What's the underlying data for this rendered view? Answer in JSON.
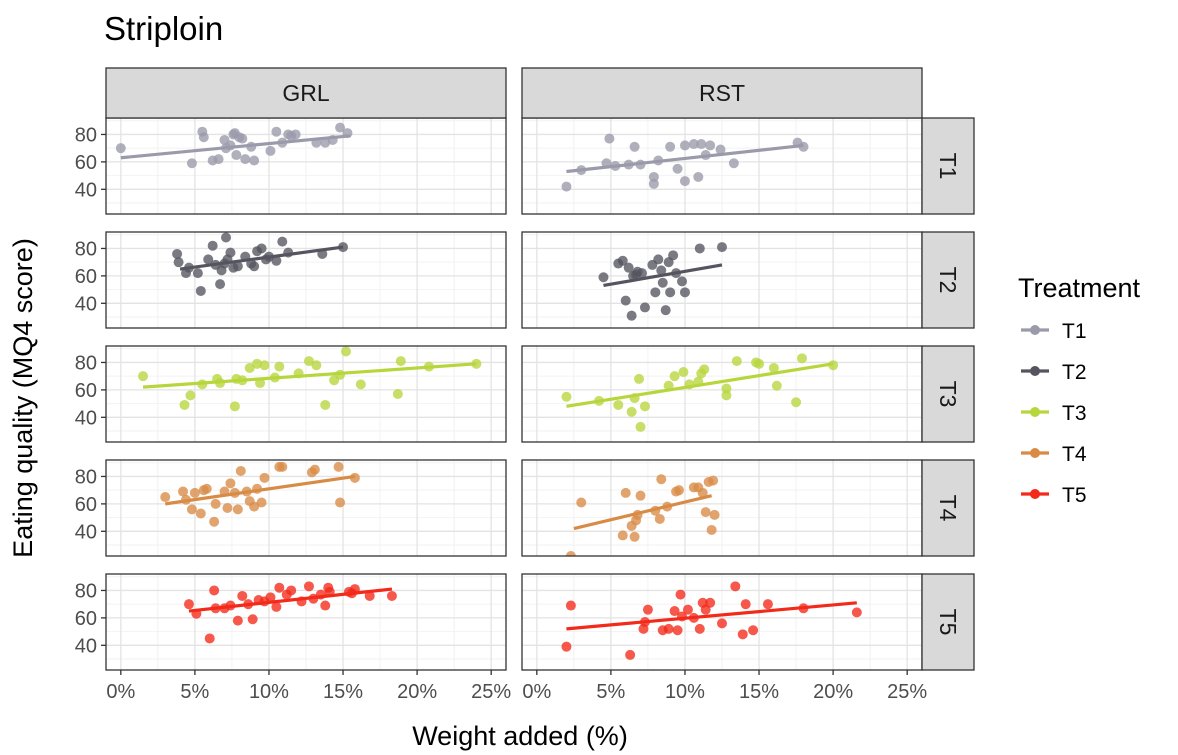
{
  "chart_data": {
    "type": "scatter",
    "title": "Striploin",
    "xlabel": "Weight added (%)",
    "ylabel": "Eating quality (MQ4 score)",
    "xlim": [
      -1,
      26
    ],
    "ylim": [
      22,
      92
    ],
    "x_ticks": [
      0,
      5,
      10,
      15,
      20,
      25
    ],
    "x_tick_labels": [
      "0%",
      "5%",
      "10%",
      "15%",
      "20%",
      "25%"
    ],
    "y_ticks": [
      40,
      60,
      80
    ],
    "y_tick_labels": [
      "40",
      "60",
      "80"
    ],
    "grid": true,
    "legend": {
      "title": "Treatment",
      "position": "right",
      "entries": [
        {
          "label": "T1",
          "color": "#9a9aaa"
        },
        {
          "label": "T2",
          "color": "#55545f"
        },
        {
          "label": "T3",
          "color": "#b7d63c"
        },
        {
          "label": "T4",
          "color": "#d88b45"
        },
        {
          "label": "T5",
          "color": "#f3291a"
        }
      ]
    },
    "columns": [
      "GRL",
      "RST"
    ],
    "rows": [
      "T1",
      "T2",
      "T3",
      "T4",
      "T5"
    ],
    "panels": [
      {
        "col": "GRL",
        "row": "T1",
        "color": "#9a9aaa",
        "fit": [
          [
            0,
            63
          ],
          [
            15.5,
            79
          ]
        ],
        "points": [
          [
            0,
            70
          ],
          [
            4.8,
            59
          ],
          [
            5.5,
            82
          ],
          [
            5.6,
            78
          ],
          [
            6.2,
            61
          ],
          [
            6.6,
            62
          ],
          [
            7,
            76
          ],
          [
            7.1,
            70
          ],
          [
            7.4,
            72
          ],
          [
            7.6,
            80
          ],
          [
            7.7,
            81
          ],
          [
            7.8,
            65
          ],
          [
            8.0,
            78
          ],
          [
            8.2,
            77
          ],
          [
            8.4,
            62
          ],
          [
            8.8,
            71
          ],
          [
            9.0,
            61
          ],
          [
            10.1,
            68
          ],
          [
            10.5,
            82
          ],
          [
            10.9,
            74
          ],
          [
            11.3,
            80
          ],
          [
            11.5,
            79
          ],
          [
            11.8,
            80
          ],
          [
            13.2,
            74
          ],
          [
            13.8,
            74
          ],
          [
            14.3,
            76
          ],
          [
            14.8,
            85
          ],
          [
            15.3,
            81
          ]
        ]
      },
      {
        "col": "RST",
        "row": "T1",
        "color": "#9a9aaa",
        "fit": [
          [
            2,
            53
          ],
          [
            18,
            72
          ]
        ],
        "points": [
          [
            2,
            42
          ],
          [
            3,
            54
          ],
          [
            4.7,
            59
          ],
          [
            4.9,
            77
          ],
          [
            5.3,
            57
          ],
          [
            6.2,
            58
          ],
          [
            6.6,
            71
          ],
          [
            7,
            58
          ],
          [
            7.9,
            44
          ],
          [
            7.9,
            49
          ],
          [
            8.2,
            61
          ],
          [
            9.0,
            71
          ],
          [
            9.5,
            55
          ],
          [
            10,
            72
          ],
          [
            10,
            46
          ],
          [
            10.6,
            73
          ],
          [
            10.9,
            49
          ],
          [
            11.1,
            73
          ],
          [
            11.4,
            65
          ],
          [
            11.7,
            72
          ],
          [
            12.4,
            69
          ],
          [
            13.3,
            59
          ],
          [
            17.6,
            74
          ],
          [
            18,
            71
          ]
        ]
      },
      {
        "col": "GRL",
        "row": "T2",
        "color": "#55545f",
        "fit": [
          [
            4,
            65
          ],
          [
            15,
            81
          ]
        ],
        "points": [
          [
            3.8,
            76
          ],
          [
            3.9,
            70
          ],
          [
            4.4,
            62
          ],
          [
            4.6,
            66
          ],
          [
            5.2,
            62
          ],
          [
            5.4,
            49
          ],
          [
            5.9,
            72
          ],
          [
            6.2,
            82
          ],
          [
            6.4,
            68
          ],
          [
            6.7,
            54
          ],
          [
            6.8,
            64
          ],
          [
            7,
            69
          ],
          [
            7.1,
            88
          ],
          [
            7.2,
            72
          ],
          [
            7.4,
            77
          ],
          [
            7.6,
            66
          ],
          [
            7.9,
            67
          ],
          [
            8.4,
            74
          ],
          [
            8.8,
            69
          ],
          [
            9.0,
            67
          ],
          [
            9.2,
            78
          ],
          [
            9.5,
            80
          ],
          [
            9.8,
            72
          ],
          [
            10,
            74
          ],
          [
            10.5,
            71
          ],
          [
            10.9,
            85
          ],
          [
            11.3,
            77
          ],
          [
            13.6,
            76
          ],
          [
            15,
            81
          ]
        ]
      },
      {
        "col": "RST",
        "row": "T2",
        "color": "#55545f",
        "fit": [
          [
            4.5,
            53
          ],
          [
            12.5,
            68
          ]
        ],
        "points": [
          [
            4.5,
            59
          ],
          [
            5.5,
            69
          ],
          [
            5.8,
            71
          ],
          [
            6,
            42
          ],
          [
            6.2,
            66
          ],
          [
            6.4,
            31
          ],
          [
            6.5,
            60
          ],
          [
            6.7,
            61
          ],
          [
            6.8,
            63
          ],
          [
            7.1,
            62
          ],
          [
            7.3,
            37
          ],
          [
            7.8,
            68
          ],
          [
            8.0,
            48
          ],
          [
            8.2,
            72
          ],
          [
            8.4,
            64
          ],
          [
            8.5,
            55
          ],
          [
            8.7,
            35
          ],
          [
            8.9,
            70
          ],
          [
            9.0,
            48
          ],
          [
            9.2,
            75
          ],
          [
            9.4,
            62
          ],
          [
            9.8,
            56
          ],
          [
            10,
            48
          ],
          [
            11,
            80
          ],
          [
            12.5,
            81
          ]
        ]
      },
      {
        "col": "GRL",
        "row": "T3",
        "color": "#b7d63c",
        "fit": [
          [
            1.5,
            62
          ],
          [
            24,
            79
          ]
        ],
        "points": [
          [
            1.5,
            70
          ],
          [
            4.3,
            49
          ],
          [
            4.7,
            56
          ],
          [
            5.5,
            64
          ],
          [
            6.5,
            68
          ],
          [
            6.7,
            65
          ],
          [
            7.7,
            48
          ],
          [
            7.8,
            68
          ],
          [
            8.2,
            67
          ],
          [
            8.7,
            76
          ],
          [
            9.2,
            79
          ],
          [
            9.4,
            65
          ],
          [
            9.7,
            78
          ],
          [
            10.4,
            69
          ],
          [
            10.7,
            77
          ],
          [
            12,
            72
          ],
          [
            12.7,
            81
          ],
          [
            13.2,
            78
          ],
          [
            13.8,
            49
          ],
          [
            14.4,
            67
          ],
          [
            14.8,
            71
          ],
          [
            15.2,
            88
          ],
          [
            16.2,
            64
          ],
          [
            18.7,
            57
          ],
          [
            18.9,
            81
          ],
          [
            20.8,
            77
          ],
          [
            24,
            79
          ]
        ]
      },
      {
        "col": "RST",
        "row": "T3",
        "color": "#b7d63c",
        "fit": [
          [
            2,
            48
          ],
          [
            20,
            79
          ]
        ],
        "points": [
          [
            2,
            55
          ],
          [
            4.2,
            52
          ],
          [
            5.5,
            49
          ],
          [
            6.4,
            44
          ],
          [
            6.6,
            54
          ],
          [
            6.9,
            68
          ],
          [
            7.0,
            33
          ],
          [
            7.3,
            48
          ],
          [
            8.9,
            63
          ],
          [
            9.3,
            70
          ],
          [
            9.9,
            73
          ],
          [
            10.3,
            64
          ],
          [
            10.9,
            66
          ],
          [
            11.1,
            72
          ],
          [
            11.3,
            75
          ],
          [
            12.8,
            56
          ],
          [
            12.8,
            61
          ],
          [
            13.5,
            81
          ],
          [
            14.8,
            80
          ],
          [
            15.0,
            79
          ],
          [
            16.0,
            76
          ],
          [
            16.2,
            63
          ],
          [
            17.5,
            51
          ],
          [
            17.9,
            83
          ],
          [
            20,
            78
          ]
        ]
      },
      {
        "col": "GRL",
        "row": "T4",
        "color": "#d88b45",
        "fit": [
          [
            3,
            60
          ],
          [
            15.8,
            80
          ]
        ],
        "points": [
          [
            3,
            65
          ],
          [
            4.2,
            69
          ],
          [
            4.4,
            63
          ],
          [
            4.8,
            56
          ],
          [
            5.0,
            68
          ],
          [
            5.4,
            53
          ],
          [
            5.6,
            70
          ],
          [
            5.8,
            71
          ],
          [
            6.3,
            47
          ],
          [
            6.4,
            60
          ],
          [
            7,
            69
          ],
          [
            7.2,
            57
          ],
          [
            7.4,
            75
          ],
          [
            7.7,
            68
          ],
          [
            7.9,
            56
          ],
          [
            8.1,
            84
          ],
          [
            8.5,
            69
          ],
          [
            8.7,
            62
          ],
          [
            9.0,
            58
          ],
          [
            9.2,
            71
          ],
          [
            9.5,
            61
          ],
          [
            9.7,
            79
          ],
          [
            10.7,
            87
          ],
          [
            10.9,
            87
          ],
          [
            12.9,
            83
          ],
          [
            13.1,
            85
          ],
          [
            14.7,
            87
          ],
          [
            14.8,
            61
          ],
          [
            15.8,
            79
          ]
        ]
      },
      {
        "col": "RST",
        "row": "T4",
        "color": "#d88b45",
        "fit": [
          [
            2.5,
            42
          ],
          [
            11.8,
            66
          ]
        ],
        "points": [
          [
            2.3,
            22
          ],
          [
            3,
            61
          ],
          [
            5.8,
            37
          ],
          [
            6.0,
            68
          ],
          [
            6.4,
            44
          ],
          [
            6.6,
            36
          ],
          [
            6.7,
            48
          ],
          [
            6.8,
            52
          ],
          [
            7,
            66
          ],
          [
            8.0,
            55
          ],
          [
            8.3,
            49
          ],
          [
            8.4,
            78
          ],
          [
            8.8,
            58
          ],
          [
            9.4,
            69
          ],
          [
            9.6,
            70
          ],
          [
            10.6,
            72
          ],
          [
            10.9,
            72
          ],
          [
            11.2,
            68
          ],
          [
            11.4,
            54
          ],
          [
            11.6,
            76
          ],
          [
            11.8,
            41
          ],
          [
            11.9,
            77
          ],
          [
            12,
            52
          ]
        ]
      },
      {
        "col": "GRL",
        "row": "T5",
        "color": "#f3291a",
        "fit": [
          [
            4.6,
            65
          ],
          [
            18.3,
            81
          ]
        ],
        "points": [
          [
            4.6,
            70
          ],
          [
            5.1,
            63
          ],
          [
            6,
            45
          ],
          [
            6.3,
            80
          ],
          [
            6.4,
            67
          ],
          [
            7,
            67
          ],
          [
            7.4,
            69
          ],
          [
            7.9,
            58
          ],
          [
            8.2,
            76
          ],
          [
            8.6,
            70
          ],
          [
            8.9,
            59
          ],
          [
            9.3,
            73
          ],
          [
            9.7,
            72
          ],
          [
            10.1,
            75
          ],
          [
            10.5,
            68
          ],
          [
            10.7,
            82
          ],
          [
            11.2,
            77
          ],
          [
            11.5,
            80
          ],
          [
            12.2,
            72
          ],
          [
            12.7,
            83
          ],
          [
            13.0,
            74
          ],
          [
            13.5,
            77
          ],
          [
            13.8,
            69
          ],
          [
            14.0,
            82
          ],
          [
            14.1,
            79
          ],
          [
            15.4,
            79
          ],
          [
            15.6,
            78
          ],
          [
            15.8,
            81
          ],
          [
            16.8,
            76
          ],
          [
            18.3,
            76
          ]
        ]
      },
      {
        "col": "RST",
        "row": "T5",
        "color": "#f3291a",
        "fit": [
          [
            2,
            52
          ],
          [
            21.6,
            71
          ]
        ],
        "points": [
          [
            2,
            39
          ],
          [
            2.3,
            69
          ],
          [
            6.3,
            33
          ],
          [
            7.2,
            52
          ],
          [
            7.3,
            57
          ],
          [
            7.5,
            66
          ],
          [
            8.5,
            51
          ],
          [
            8.9,
            52
          ],
          [
            9.3,
            65
          ],
          [
            9.5,
            51
          ],
          [
            9.7,
            77
          ],
          [
            9.8,
            61
          ],
          [
            10.2,
            66
          ],
          [
            10.6,
            60
          ],
          [
            11.0,
            52
          ],
          [
            11.2,
            71
          ],
          [
            11.4,
            66
          ],
          [
            11.7,
            71
          ],
          [
            12.5,
            56
          ],
          [
            13.4,
            83
          ],
          [
            13.9,
            48
          ],
          [
            14.1,
            70
          ],
          [
            14.6,
            51
          ],
          [
            15.6,
            70
          ],
          [
            18,
            67
          ],
          [
            21.6,
            64
          ]
        ]
      }
    ]
  }
}
